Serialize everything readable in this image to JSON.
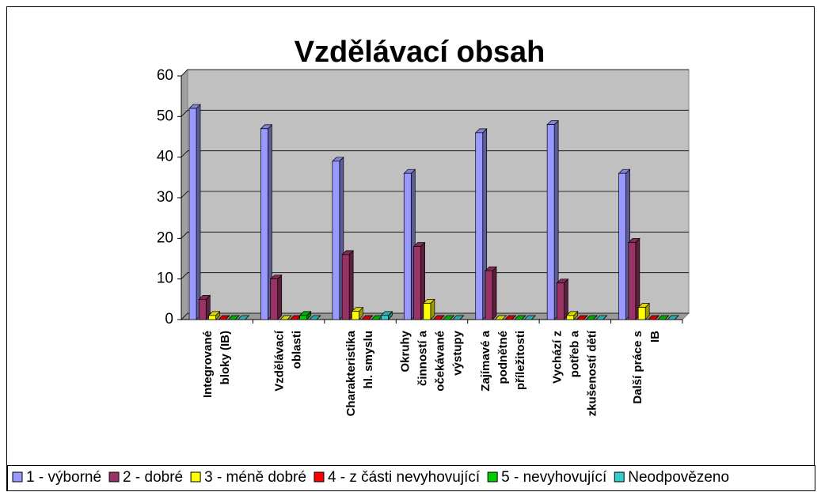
{
  "chart_data": {
    "type": "bar3d",
    "title": "Vzdělávací obsah",
    "categories": [
      [
        "Integrované",
        "bloky (IB)"
      ],
      [
        "Vzdělávací",
        "oblasti"
      ],
      [
        "Charakteristika",
        "hl. smyslu"
      ],
      [
        "Okruhy",
        "činností a",
        "očekávané",
        "výstupy"
      ],
      [
        "Zajímavé a",
        "podnětné",
        "příležitosti"
      ],
      [
        "Vychází z",
        "potřeb a",
        "zkušeností dětí"
      ],
      [
        "Další práce s",
        "IB"
      ]
    ],
    "series": [
      {
        "name": "1 - výborné",
        "color": "#9999ff",
        "values": [
          52,
          47,
          39,
          36,
          46,
          48,
          36
        ]
      },
      {
        "name": "2 - dobré",
        "color": "#993366",
        "values": [
          5,
          10,
          16,
          18,
          12,
          9,
          19
        ]
      },
      {
        "name": "3 - méně dobré",
        "color": "#ffff00",
        "values": [
          1,
          0,
          2,
          4,
          0,
          1,
          3
        ]
      },
      {
        "name": "4 - z části nevyhovující",
        "color": "#ff0000",
        "values": [
          0,
          0,
          0,
          0,
          0,
          0,
          0
        ]
      },
      {
        "name": "5 - nevyhovující",
        "color": "#00cc00",
        "values": [
          0,
          1,
          0,
          0,
          0,
          0,
          0
        ]
      },
      {
        "name": "Neodpovězeno",
        "color": "#33cccc",
        "values": [
          0,
          0,
          1,
          0,
          0,
          0,
          0
        ]
      }
    ],
    "ylim": [
      0,
      60
    ],
    "yticks": [
      0,
      10,
      20,
      30,
      40,
      50,
      60
    ],
    "grid": true,
    "legend": "bottom"
  }
}
